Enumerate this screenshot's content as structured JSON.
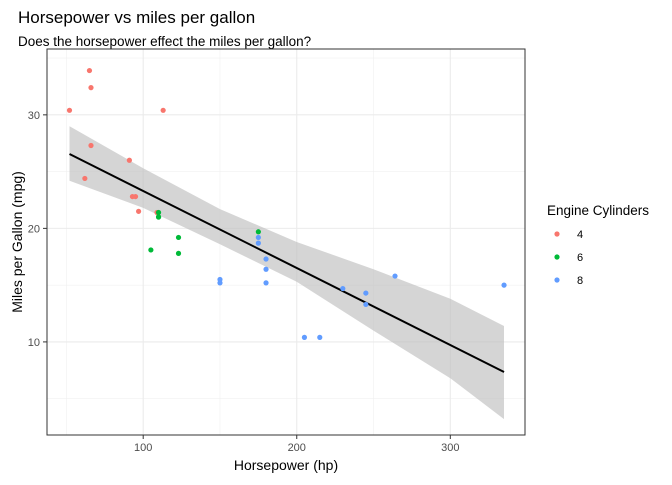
{
  "chart_data": {
    "type": "scatter",
    "title": "Horsepower vs miles per gallon",
    "subtitle": "Does the horsepower effect the miles per gallon?",
    "xlabel": "Horsepower (hp)",
    "ylabel": "Miles per Gallon (mpg)",
    "xlim": [
      37.35,
      348.65
    ],
    "ylim": [
      1.8,
      35.8
    ],
    "x_ticks": [
      100,
      200,
      300
    ],
    "y_ticks": [
      10,
      20,
      30
    ],
    "grid": true,
    "legend": {
      "title": "Engine Cylinders",
      "position": "right",
      "entries": [
        {
          "label": "4",
          "color": "#F8766D"
        },
        {
          "label": "6",
          "color": "#00BA38"
        },
        {
          "label": "8",
          "color": "#619CFF"
        }
      ]
    },
    "series": [
      {
        "name": "4",
        "color": "#F8766D",
        "points": [
          [
            93,
            22.8
          ],
          [
            62,
            24.4
          ],
          [
            95,
            22.8
          ],
          [
            66,
            32.4
          ],
          [
            52,
            30.4
          ],
          [
            65,
            33.9
          ],
          [
            97,
            21.5
          ],
          [
            66,
            27.3
          ],
          [
            91,
            26.0
          ],
          [
            113,
            30.4
          ],
          [
            109,
            21.4
          ]
        ]
      },
      {
        "name": "6",
        "color": "#00BA38",
        "points": [
          [
            110,
            21.0
          ],
          [
            110,
            21.0
          ],
          [
            110,
            21.4
          ],
          [
            105,
            18.1
          ],
          [
            123,
            19.2
          ],
          [
            123,
            17.8
          ],
          [
            175,
            19.7
          ]
        ]
      },
      {
        "name": "8",
        "color": "#619CFF",
        "points": [
          [
            175,
            18.7
          ],
          [
            245,
            14.3
          ],
          [
            180,
            16.4
          ],
          [
            180,
            17.3
          ],
          [
            180,
            15.2
          ],
          [
            205,
            10.4
          ],
          [
            215,
            10.4
          ],
          [
            230,
            14.7
          ],
          [
            150,
            15.5
          ],
          [
            150,
            15.2
          ],
          [
            245,
            13.3
          ],
          [
            175,
            19.2
          ],
          [
            264,
            15.8
          ],
          [
            335,
            15.0
          ]
        ]
      }
    ],
    "trend": {
      "method": "lm",
      "color": "#000000",
      "band_color": "#BEBEBE",
      "points": [
        [
          52,
          26.55
        ],
        [
          335,
          7.35
        ]
      ],
      "band_upper": [
        [
          52,
          29.0
        ],
        [
          100,
          25.3
        ],
        [
          150,
          21.7
        ],
        [
          200,
          18.8
        ],
        [
          250,
          16.4
        ],
        [
          300,
          13.8
        ],
        [
          335,
          11.4
        ]
      ],
      "band_lower": [
        [
          52,
          24.2
        ],
        [
          100,
          21.8
        ],
        [
          150,
          18.6
        ],
        [
          200,
          15.3
        ],
        [
          250,
          11.0
        ],
        [
          300,
          6.8
        ],
        [
          335,
          3.2
        ]
      ]
    }
  }
}
